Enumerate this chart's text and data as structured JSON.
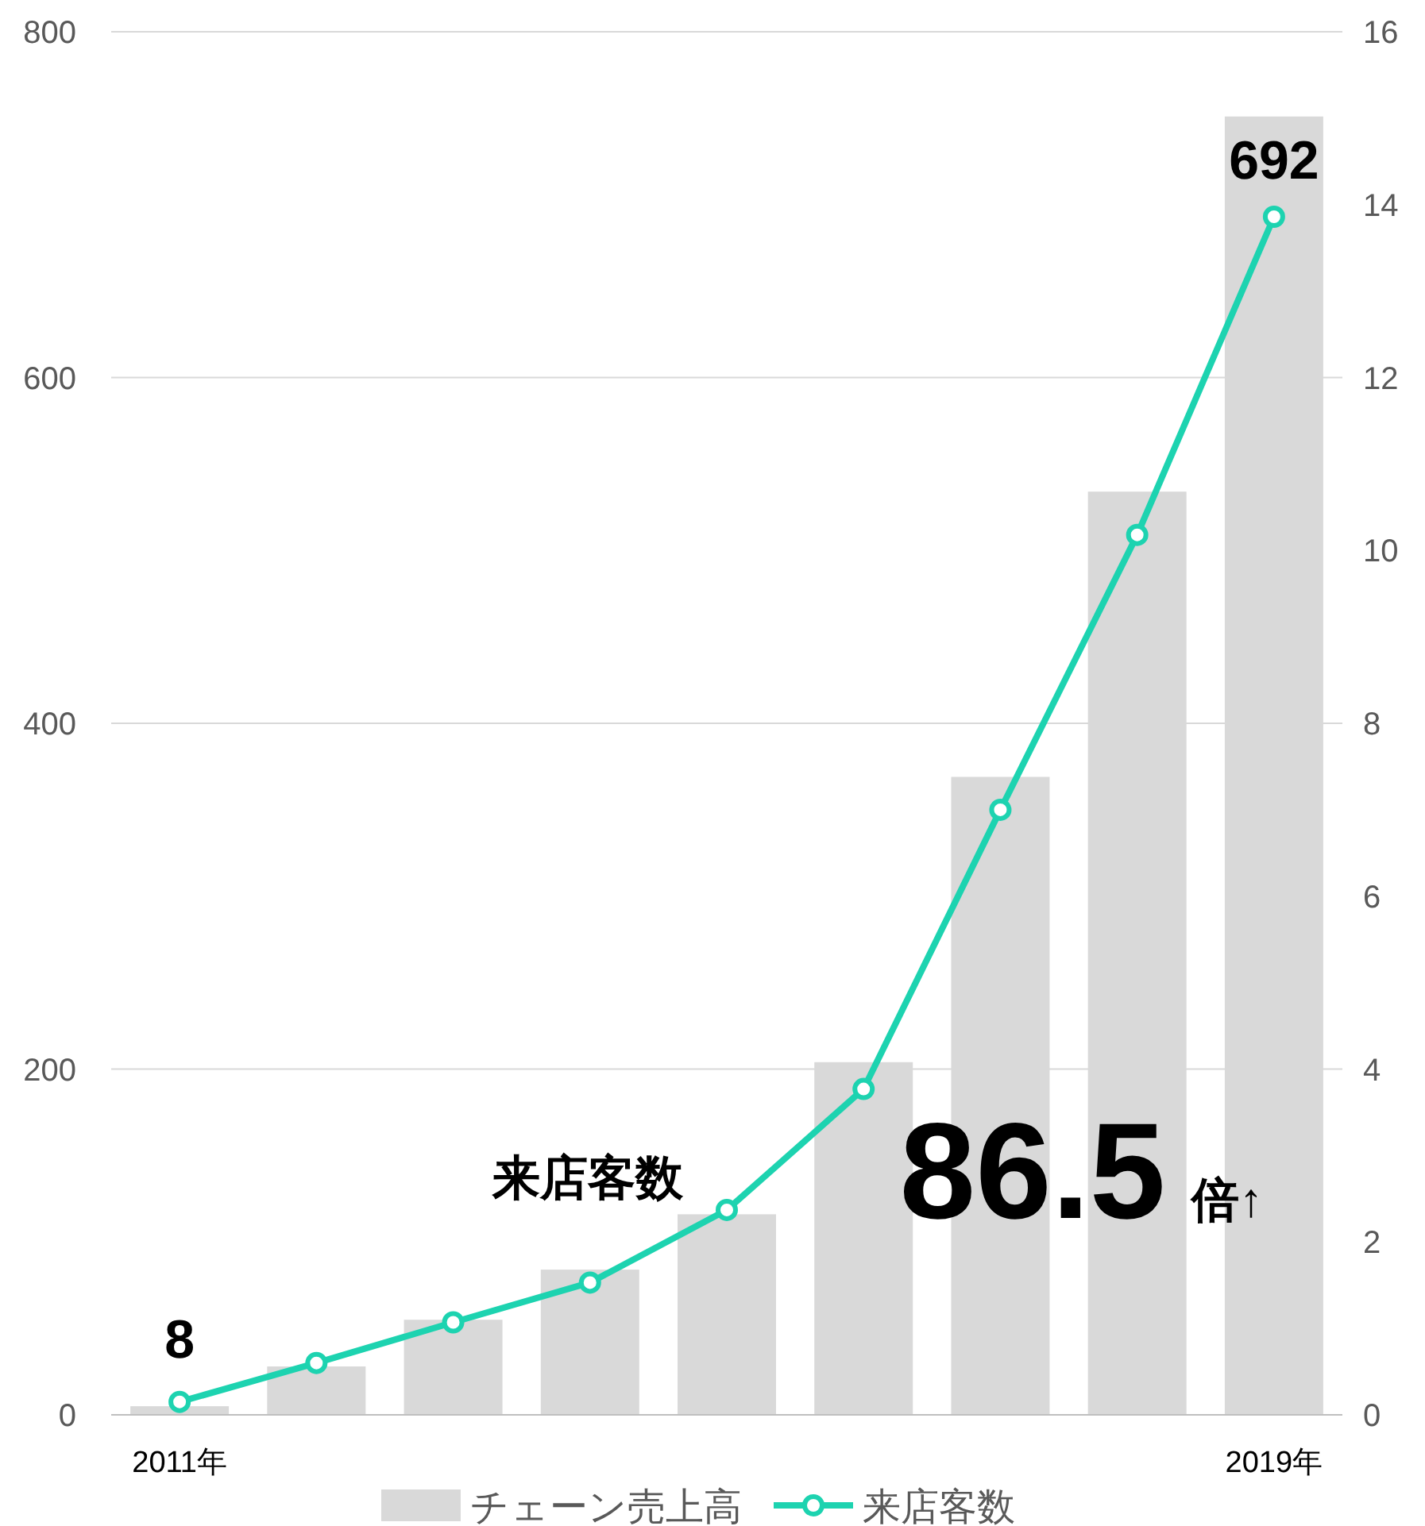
{
  "chart_data": {
    "type": "bar",
    "categories": [
      "2011年",
      null,
      null,
      null,
      null,
      null,
      null,
      null,
      "2019年"
    ],
    "series": [
      {
        "name": "チェーン売上高",
        "color": "#d9d9d9",
        "values": [
          5,
          28,
          55,
          84,
          116,
          204,
          369,
          534,
          751
        ]
      },
      {
        "name": "来店客数",
        "type": "line",
        "axis": "y2",
        "color": "#1dd3b0",
        "values": [
          0.15,
          0.6,
          1.07,
          1.53,
          2.37,
          3.77,
          7.0,
          10.18,
          13.86
        ]
      }
    ],
    "ylim": [
      0,
      800
    ],
    "yticks": [
      0,
      200,
      400,
      600,
      800
    ],
    "y2lim": [
      0,
      16
    ],
    "y2ticks": [
      0,
      2,
      4,
      6,
      8,
      10,
      12,
      14,
      16
    ],
    "grid": "y",
    "legend": "bottom",
    "marker": "circle",
    "line_style": "solid",
    "annotations": [
      "8",
      "692",
      "来店客数",
      "86.5",
      "倍↑"
    ]
  }
}
